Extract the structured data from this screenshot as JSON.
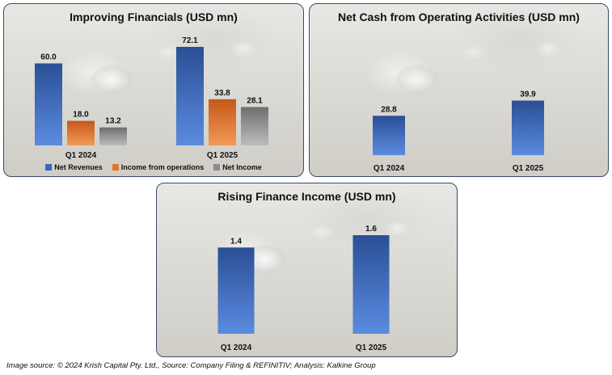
{
  "colors": {
    "blue_top": "#2a4f95",
    "blue_bottom": "#5b8be0",
    "orange_top": "#c4581a",
    "orange_bottom": "#f29a55",
    "gray_top": "#6e6e6e",
    "gray_bottom": "#bdbdbd"
  },
  "chart_data": [
    {
      "id": "financials",
      "type": "bar",
      "title": "Improving Financials (USD mn)",
      "categories": [
        "Q1 2024",
        "Q1 2025"
      ],
      "series": [
        {
          "name": "Net Revenues",
          "values": [
            60.0,
            72.1
          ],
          "labels": [
            "60.0",
            "72.1"
          ],
          "color": "blue"
        },
        {
          "name": "Income from operations",
          "values": [
            18.0,
            33.8
          ],
          "labels": [
            "18.0",
            "33.8"
          ],
          "color": "orange"
        },
        {
          "name": "Net Income",
          "values": [
            13.2,
            28.1
          ],
          "labels": [
            "13.2",
            "28.1"
          ],
          "color": "gray"
        }
      ],
      "ylim": [
        0,
        72.1
      ],
      "legend": "bottom"
    },
    {
      "id": "netcash",
      "type": "bar",
      "title": "Net Cash from Operating Activities (USD mn)",
      "categories": [
        "Q1 2024",
        "Q1 2025"
      ],
      "series": [
        {
          "name": "Net Cash from Operating Activities",
          "values": [
            28.8,
            39.9
          ],
          "labels": [
            "28.8",
            "39.9"
          ],
          "color": "blue"
        }
      ],
      "ylim": [
        0,
        72.1
      ]
    },
    {
      "id": "finance",
      "type": "bar",
      "title": "Rising Finance Income (USD mn)",
      "categories": [
        "Q1 2024",
        "Q1 2025"
      ],
      "series": [
        {
          "name": "Finance Income",
          "values": [
            1.4,
            1.6
          ],
          "labels": [
            "1.4",
            "1.6"
          ],
          "color": "blue"
        }
      ],
      "ylim": [
        0,
        1.6
      ]
    }
  ],
  "footer": "Image source: © 2024 Krish Capital Pty. Ltd., Source: Company Filing & REFINITIV; Analysis: Kalkine Group"
}
